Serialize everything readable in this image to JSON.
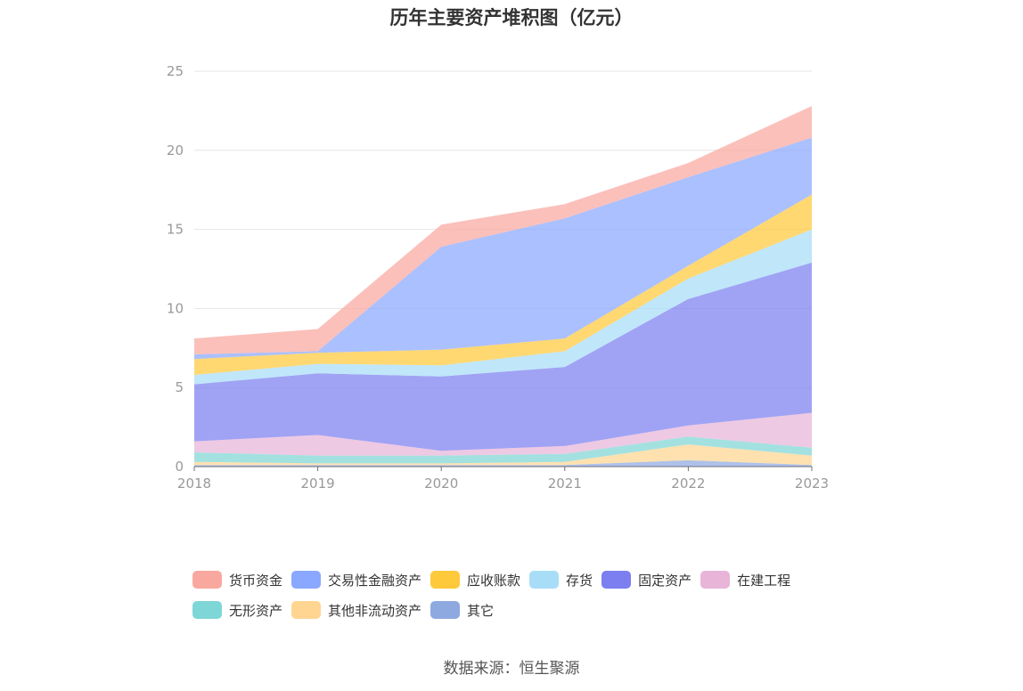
{
  "chart_data": {
    "type": "area",
    "stacked": true,
    "title": "历年主要资产堆积图（亿元）",
    "x": [
      "2018",
      "2019",
      "2020",
      "2021",
      "2022",
      "2023"
    ],
    "ylim": [
      0,
      25
    ],
    "yticks": [
      0,
      5,
      10,
      15,
      20,
      25
    ],
    "xlabel": "",
    "ylabel": "",
    "grid": true,
    "legend_position": "bottom",
    "series": [
      {
        "name": "其它",
        "color": "#8ea9e0",
        "values": [
          0.1,
          0.1,
          0.1,
          0.1,
          0.4,
          0.1
        ]
      },
      {
        "name": "其他非流动资产",
        "color": "#ffd591",
        "values": [
          0.2,
          0.1,
          0.1,
          0.2,
          1.0,
          0.6
        ]
      },
      {
        "name": "无形资产",
        "color": "#7fd6d6",
        "values": [
          0.6,
          0.5,
          0.5,
          0.5,
          0.5,
          0.5
        ]
      },
      {
        "name": "在建工程",
        "color": "#e8b4d8",
        "values": [
          0.7,
          1.3,
          0.3,
          0.5,
          0.7,
          2.2
        ]
      },
      {
        "name": "固定资产",
        "color": "#7b7ff0",
        "values": [
          3.6,
          3.9,
          4.7,
          5.0,
          8.0,
          9.5
        ]
      },
      {
        "name": "存货",
        "color": "#a8ddf8",
        "values": [
          0.6,
          0.6,
          0.7,
          1.0,
          1.3,
          2.1
        ]
      },
      {
        "name": "应收账款",
        "color": "#ffc93c",
        "values": [
          1.0,
          0.7,
          1.0,
          0.8,
          0.8,
          2.2
        ]
      },
      {
        "name": "交易性金融资产",
        "color": "#8aa8ff",
        "values": [
          0.3,
          0.1,
          6.5,
          7.6,
          5.6,
          3.6
        ]
      },
      {
        "name": "货币资金",
        "color": "#f9a8a0",
        "values": [
          1.0,
          1.4,
          1.4,
          0.9,
          0.9,
          2.0
        ]
      }
    ]
  },
  "legend": {
    "items": [
      {
        "label": "货币资金",
        "color": "#f9a8a0"
      },
      {
        "label": "交易性金融资产",
        "color": "#8aa8ff"
      },
      {
        "label": "应收账款",
        "color": "#ffc93c"
      },
      {
        "label": "存货",
        "color": "#a8ddf8"
      },
      {
        "label": "固定资产",
        "color": "#7b7ff0"
      },
      {
        "label": "在建工程",
        "color": "#e8b4d8"
      },
      {
        "label": "无形资产",
        "color": "#7fd6d6"
      },
      {
        "label": "其他非流动资产",
        "color": "#ffd591"
      },
      {
        "label": "其它",
        "color": "#8ea9e0"
      }
    ]
  },
  "footer": {
    "source": "数据来源：恒生聚源"
  }
}
